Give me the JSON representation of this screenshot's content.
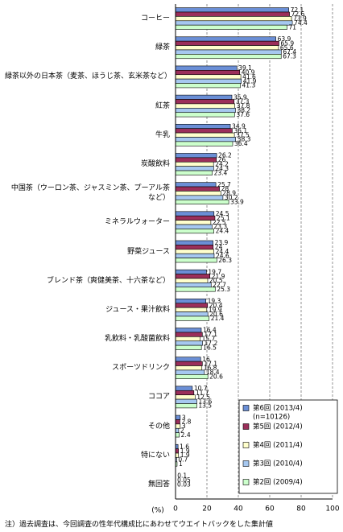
{
  "chart_data": {
    "type": "hbar",
    "categories": [
      "コーヒー",
      "緑茶",
      "緑茶以外の日本茶（麦茶、ほうじ茶、玄米茶など）",
      "紅茶",
      "牛乳",
      "炭酸飲料",
      "中国茶（ウーロン茶、ジャスミン茶、プーアル茶など）",
      "ミネラルウォーター",
      "野菜ジュース",
      "ブレンド茶（爽健美茶、十六茶など）",
      "ジュース・果汁飲料",
      "乳飲料・乳酸菌飲料",
      "スポーツドリンク",
      "ココア",
      "その他",
      "特にない",
      "無回答"
    ],
    "series": [
      {
        "name": "第6回 (2013/4)",
        "color": "#6b8fd6",
        "values": [
          72.1,
          63.9,
          39.1,
          35.9,
          34.9,
          26.2,
          25.7,
          24.5,
          23.9,
          19.7,
          19.3,
          16.4,
          16.0,
          10.7,
          3.0,
          1.6,
          0.1
        ]
      },
      {
        "name": "第5回 (2012/4)",
        "color": "#9b2f5a",
        "values": [
          72.6,
          65.9,
          40.9,
          37.3,
          36.1,
          26.0,
          28.0,
          25.1,
          24.0,
          21.9,
          20.4,
          17.1,
          17.1,
          11.7,
          2.8,
          1.9,
          0.05
        ]
      },
      {
        "name": "第4回 (2011/4)",
        "color": "#ffffcc",
        "values": [
          73.9,
          65.6,
          41.6,
          37.8,
          37.5,
          24.2,
          28.9,
          22.5,
          24.4,
          20.5,
          19.9,
          15.7,
          16.8,
          12.5,
          3.0,
          1.9,
          0.03
        ]
      },
      {
        "name": "第3回 (2010/4)",
        "color": "#a6c8f0",
        "values": [
          74.4,
          67.4,
          41.9,
          38.2,
          38.3,
          24.3,
          30.2,
          23.3,
          24.6,
          22.7,
          20.6,
          17.2,
          18.4,
          13.6,
          2.0,
          0.7,
          null
        ]
      },
      {
        "name": "第2回 (2009/4)",
        "color": "#ccffcc",
        "values": [
          71.0,
          67.3,
          41.3,
          37.6,
          36.4,
          23.4,
          33.9,
          24.4,
          26.3,
          25.3,
          21.4,
          16.5,
          20.6,
          13.5,
          2.4,
          1.0,
          null
        ]
      }
    ],
    "legend_note": "(n=10126)",
    "x_label": "(%)",
    "xlim": [
      0,
      100
    ],
    "xticks": [
      0,
      20,
      40,
      60,
      80,
      100
    ],
    "grid": true,
    "footnote": "注）過去調査は、今回調査の性年代構成比にあわせてウエイトバックをした集計値"
  }
}
